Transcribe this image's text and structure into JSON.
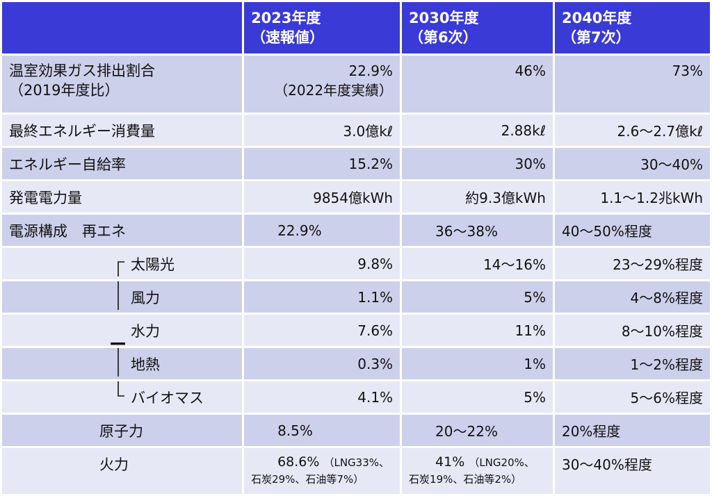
{
  "header": {
    "col1_line1": "2023年度",
    "col1_line2": "（速報値）",
    "col2_line1": "2030年度",
    "col2_line2": "（第6次）",
    "col3_line1": "2040年度",
    "col3_line2": "（第7次）"
  },
  "rows": {
    "ghg": {
      "label_line1": "温室効果ガス排出割合",
      "label_line2": "（2019年度比）",
      "v2023_line1": "22.9%",
      "v2023_line2": "（2022年度実績）",
      "v2030": "46%",
      "v2040": "73%"
    },
    "final_energy": {
      "label": "最終エネルギー消費量",
      "v2023": "3.0億kℓ",
      "v2030": "2.88kℓ",
      "v2040": "2.6～2.7億kℓ"
    },
    "self_sufficiency": {
      "label": "エネルギー自給率",
      "v2023": "15.2%",
      "v2030": "30%",
      "v2040": "30～40%"
    },
    "generation": {
      "label": "発電電力量",
      "v2023": "9854億kWh",
      "v2030": "約9.3億kWh",
      "v2040": "1.1～1.2兆kWh"
    },
    "renewables": {
      "label": "電源構成　再エネ",
      "v2023": "22.9%",
      "v2030": "36～38%",
      "v2040": "40～50%程度"
    },
    "solar": {
      "label": "太陽光",
      "v2023": "9.8%",
      "v2030": "14～16%",
      "v2040": "23～29%程度"
    },
    "wind": {
      "label": "風力",
      "v2023": "1.1%",
      "v2030": "5%",
      "v2040": "4～8%程度"
    },
    "hydro": {
      "label": "水力",
      "v2023": "7.6%",
      "v2030": "11%",
      "v2040": "8～10%程度"
    },
    "geothermal": {
      "label": "地熱",
      "v2023": "0.3%",
      "v2030": "1%",
      "v2040": "1～2%程度"
    },
    "biomass": {
      "label": "バイオマス",
      "v2023": "4.1%",
      "v2030": "5%",
      "v2040": "5～6%程度"
    },
    "nuclear": {
      "label": "原子力",
      "v2023": "8.5%",
      "v2030": "20～22%",
      "v2040": "20%程度"
    },
    "thermal": {
      "label": "火力",
      "v2023_main": "68.6%",
      "v2023_note1": "（LNG33%、",
      "v2023_note2": "石炭29%、石油等7%）",
      "v2030_main": "41%",
      "v2030_note1": "（LNG20%、",
      "v2030_note2": "石炭19%、石油等2%）",
      "v2040": "30～40%程度"
    }
  },
  "colors": {
    "header_bg": "#3a3ad6",
    "row_dark": "#cdd0eb",
    "row_light": "#e7e8f6"
  }
}
